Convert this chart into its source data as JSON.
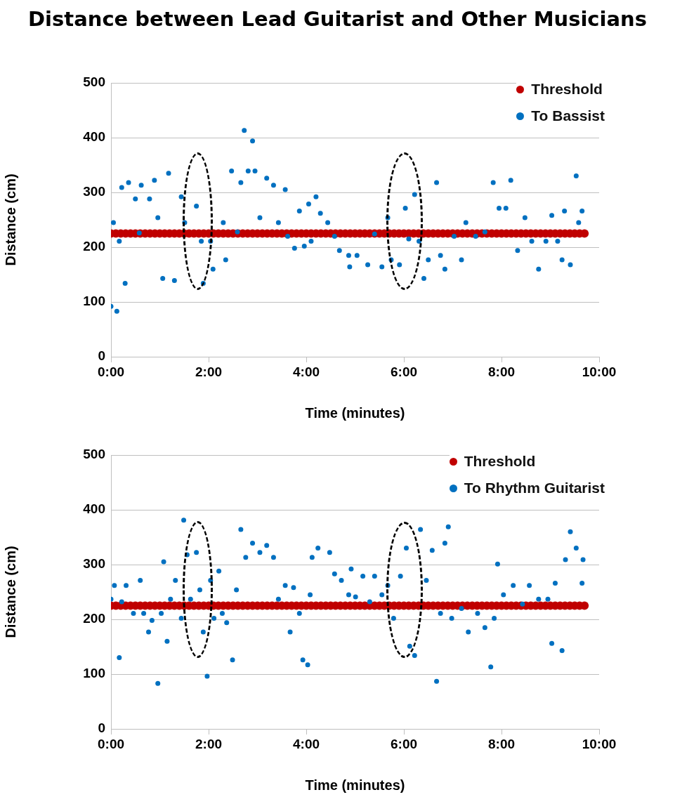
{
  "chart_data": [
    {
      "type": "scatter",
      "title": "Distance between Lead Guitarist and Other Musicians",
      "xlabel": "Time (minutes)",
      "ylabel": "Distance (cm)",
      "xlim": [
        0,
        10
      ],
      "xticks": [
        {
          "value": 0,
          "label": "0:00"
        },
        {
          "value": 2,
          "label": "2:00"
        },
        {
          "value": 4,
          "label": "4:00"
        },
        {
          "value": 6,
          "label": "6:00"
        },
        {
          "value": 8,
          "label": "8:00"
        },
        {
          "value": 10,
          "label": "10:00"
        }
      ],
      "ylim": [
        0,
        500
      ],
      "yticks": [
        0,
        100,
        200,
        300,
        400,
        500
      ],
      "grid": "y",
      "legend": "top right",
      "marker": "circle",
      "series": [
        {
          "name": "Threshold",
          "color": "#c00000",
          "x": [
            0,
            0.1,
            0.2,
            0.3,
            0.4,
            0.5,
            0.6,
            0.7,
            0.8,
            0.9,
            1,
            1.1,
            1.2,
            1.3,
            1.4,
            1.5,
            1.6,
            1.7,
            1.8,
            1.9,
            2,
            2.1,
            2.2,
            2.3,
            2.4,
            2.5,
            2.6,
            2.7,
            2.8,
            2.9,
            3,
            3.1,
            3.2,
            3.3,
            3.4,
            3.5,
            3.6,
            3.7,
            3.8,
            3.9,
            4,
            4.1,
            4.2,
            4.3,
            4.4,
            4.5,
            4.6,
            4.7,
            4.8,
            4.9,
            5,
            5.1,
            5.2,
            5.3,
            5.4,
            5.5,
            5.6,
            5.7,
            5.8,
            5.9,
            6,
            6.1,
            6.2,
            6.3,
            6.4,
            6.5,
            6.6,
            6.7,
            6.8,
            6.9,
            7,
            7.1,
            7.2,
            7.3,
            7.4,
            7.5,
            7.6,
            7.7,
            7.8,
            7.9,
            8,
            8.1,
            8.2,
            8.3,
            8.4,
            8.5,
            8.6,
            8.7,
            8.8,
            8.9,
            9,
            9.1,
            9.2,
            9.3,
            9.4,
            9.5,
            9.6,
            9.7
          ],
          "values": [
            225,
            225,
            225,
            225,
            225,
            225,
            225,
            225,
            225,
            225,
            225,
            225,
            225,
            225,
            225,
            225,
            225,
            225,
            225,
            225,
            225,
            225,
            225,
            225,
            225,
            225,
            225,
            225,
            225,
            225,
            225,
            225,
            225,
            225,
            225,
            225,
            225,
            225,
            225,
            225,
            225,
            225,
            225,
            225,
            225,
            225,
            225,
            225,
            225,
            225,
            225,
            225,
            225,
            225,
            225,
            225,
            225,
            225,
            225,
            225,
            225,
            225,
            225,
            225,
            225,
            225,
            225,
            225,
            225,
            225,
            225,
            225,
            225,
            225,
            225,
            225,
            225,
            225,
            225,
            225,
            225,
            225,
            225,
            225,
            225,
            225,
            225,
            225,
            225,
            225,
            225,
            225,
            225,
            225,
            225,
            225,
            225,
            225
          ]
        },
        {
          "name": "To Bassist",
          "color": "#0070c0",
          "x": [
            0,
            0.05,
            0.12,
            0.17,
            0.22,
            0.29,
            0.36,
            0.5,
            0.58,
            0.62,
            0.79,
            0.89,
            0.96,
            1.06,
            1.18,
            1.3,
            1.44,
            1.51,
            1.75,
            1.85,
            1.89,
            2.04,
            2.09,
            2.3,
            2.35,
            2.47,
            2.59,
            2.66,
            2.73,
            2.81,
            2.9,
            2.95,
            3.05,
            3.19,
            3.33,
            3.43,
            3.57,
            3.62,
            3.76,
            3.86,
            3.96,
            4.05,
            4.1,
            4.2,
            4.29,
            4.44,
            4.58,
            4.68,
            4.87,
            4.89,
            5.04,
            5.26,
            5.4,
            5.55,
            5.67,
            5.74,
            5.91,
            6.03,
            6.1,
            6.22,
            6.31,
            6.41,
            6.5,
            6.67,
            6.75,
            6.84,
            7.03,
            7.18,
            7.27,
            7.47,
            7.66,
            7.83,
            7.95,
            8.09,
            8.19,
            8.33,
            8.48,
            8.62,
            8.76,
            8.91,
            9.03,
            9.15,
            9.24,
            9.29,
            9.41,
            9.53,
            9.58,
            9.65
          ],
          "values": [
            92,
            245,
            83,
            211,
            309,
            134,
            318,
            288,
            226,
            313,
            288,
            322,
            254,
            143,
            335,
            139,
            292,
            245,
            275,
            211,
            134,
            211,
            160,
            245,
            177,
            339,
            228,
            318,
            413,
            339,
            394,
            339,
            254,
            326,
            313,
            245,
            305,
            220,
            198,
            266,
            202,
            279,
            211,
            292,
            262,
            245,
            220,
            194,
            185,
            164,
            185,
            168,
            224,
            164,
            254,
            177,
            168,
            271,
            215,
            296,
            211,
            143,
            177,
            318,
            185,
            160,
            220,
            177,
            245,
            220,
            228,
            318,
            271,
            271,
            322,
            194,
            254,
            211,
            160,
            211,
            258,
            211,
            177,
            266,
            168,
            330,
            245,
            266
          ]
        }
      ]
    },
    {
      "type": "scatter",
      "xlabel": "Time (minutes)",
      "ylabel": "Distance (cm)",
      "xlim": [
        0,
        10
      ],
      "xticks": [
        {
          "value": 0,
          "label": "0:00"
        },
        {
          "value": 2,
          "label": "2:00"
        },
        {
          "value": 4,
          "label": "4:00"
        },
        {
          "value": 6,
          "label": "6:00"
        },
        {
          "value": 8,
          "label": "8:00"
        },
        {
          "value": 10,
          "label": "10:00"
        }
      ],
      "ylim": [
        0,
        500
      ],
      "yticks": [
        0,
        100,
        200,
        300,
        400,
        500
      ],
      "grid": "y",
      "legend": "top right",
      "marker": "circle",
      "series": [
        {
          "name": "Threshold",
          "color": "#c00000",
          "x": [
            0,
            0.1,
            0.2,
            0.3,
            0.4,
            0.5,
            0.6,
            0.7,
            0.8,
            0.9,
            1,
            1.1,
            1.2,
            1.3,
            1.4,
            1.5,
            1.6,
            1.7,
            1.8,
            1.9,
            2,
            2.1,
            2.2,
            2.3,
            2.4,
            2.5,
            2.6,
            2.7,
            2.8,
            2.9,
            3,
            3.1,
            3.2,
            3.3,
            3.4,
            3.5,
            3.6,
            3.7,
            3.8,
            3.9,
            4,
            4.1,
            4.2,
            4.3,
            4.4,
            4.5,
            4.6,
            4.7,
            4.8,
            4.9,
            5,
            5.1,
            5.2,
            5.3,
            5.4,
            5.5,
            5.6,
            5.7,
            5.8,
            5.9,
            6,
            6.1,
            6.2,
            6.3,
            6.4,
            6.5,
            6.6,
            6.7,
            6.8,
            6.9,
            7,
            7.1,
            7.2,
            7.3,
            7.4,
            7.5,
            7.6,
            7.7,
            7.8,
            7.9,
            8,
            8.1,
            8.2,
            8.3,
            8.4,
            8.5,
            8.6,
            8.7,
            8.8,
            8.9,
            9,
            9.1,
            9.2,
            9.3,
            9.4,
            9.5,
            9.6,
            9.7
          ],
          "values": [
            225,
            225,
            225,
            225,
            225,
            225,
            225,
            225,
            225,
            225,
            225,
            225,
            225,
            225,
            225,
            225,
            225,
            225,
            225,
            225,
            225,
            225,
            225,
            225,
            225,
            225,
            225,
            225,
            225,
            225,
            225,
            225,
            225,
            225,
            225,
            225,
            225,
            225,
            225,
            225,
            225,
            225,
            225,
            225,
            225,
            225,
            225,
            225,
            225,
            225,
            225,
            225,
            225,
            225,
            225,
            225,
            225,
            225,
            225,
            225,
            225,
            225,
            225,
            225,
            225,
            225,
            225,
            225,
            225,
            225,
            225,
            225,
            225,
            225,
            225,
            225,
            225,
            225,
            225,
            225,
            225,
            225,
            225,
            225,
            225,
            225,
            225,
            225,
            225,
            225,
            225,
            225,
            225,
            225,
            225,
            225,
            225,
            225
          ]
        },
        {
          "name": "To Rhythm Guitarist",
          "color": "#0070c0",
          "x": [
            0,
            0.07,
            0.17,
            0.22,
            0.31,
            0.46,
            0.6,
            0.67,
            0.77,
            0.84,
            0.96,
            1.03,
            1.08,
            1.15,
            1.22,
            1.32,
            1.44,
            1.49,
            1.56,
            1.63,
            1.75,
            1.82,
            1.89,
            1.97,
            2.04,
            2.11,
            2.21,
            2.28,
            2.37,
            2.49,
            2.57,
            2.66,
            2.76,
            2.9,
            3.05,
            3.19,
            3.33,
            3.43,
            3.57,
            3.67,
            3.74,
            3.86,
            3.93,
            4.03,
            4.08,
            4.12,
            4.24,
            4.48,
            4.58,
            4.72,
            4.87,
            4.92,
            5.01,
            5.16,
            5.3,
            5.4,
            5.55,
            5.67,
            5.79,
            5.93,
            6.05,
            6.12,
            6.22,
            6.34,
            6.46,
            6.58,
            6.67,
            6.75,
            6.84,
            6.91,
            6.98,
            7.18,
            7.32,
            7.51,
            7.66,
            7.78,
            7.85,
            7.92,
            8.04,
            8.24,
            8.43,
            8.57,
            8.76,
            8.95,
            9.03,
            9.1,
            9.24,
            9.31,
            9.41,
            9.53,
            9.65,
            9.67
          ],
          "values": [
            237,
            262,
            130,
            232,
            262,
            211,
            271,
            211,
            177,
            198,
            83,
            211,
            305,
            160,
            237,
            271,
            202,
            381,
            318,
            237,
            322,
            254,
            177,
            96,
            271,
            202,
            288,
            211,
            194,
            126,
            254,
            364,
            313,
            339,
            322,
            335,
            313,
            237,
            262,
            177,
            258,
            211,
            126,
            117,
            245,
            313,
            330,
            322,
            283,
            271,
            245,
            292,
            241,
            279,
            232,
            279,
            245,
            262,
            202,
            279,
            330,
            151,
            134,
            364,
            271,
            326,
            87,
            211,
            339,
            369,
            202,
            220,
            177,
            211,
            185,
            113,
            202,
            301,
            245,
            262,
            228,
            262,
            237,
            237,
            156,
            266,
            143,
            309,
            360,
            330,
            266,
            309
          ]
        }
      ]
    }
  ]
}
